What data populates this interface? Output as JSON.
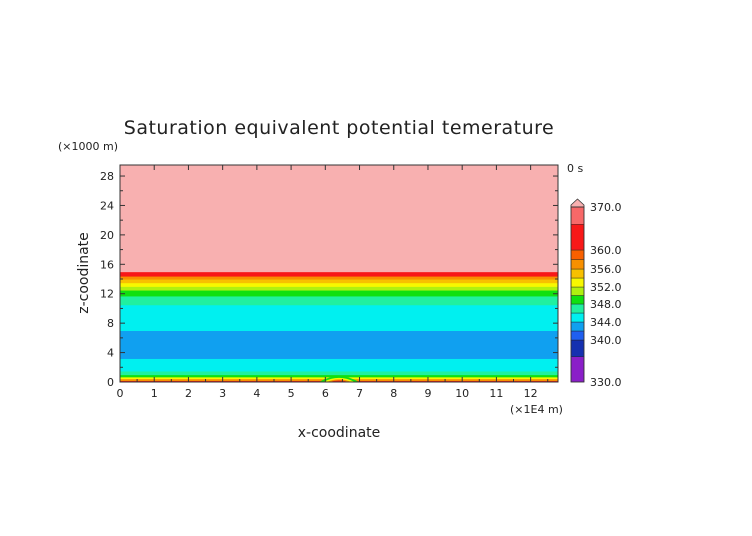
{
  "chart_data": {
    "type": "heatmap",
    "title": "Saturation equivalent potential temerature",
    "xlabel": "x-coodinate",
    "ylabel": "z-coodinate",
    "x_unit": "(×1E4 m)",
    "y_unit": "(×1000 m)",
    "time_label": "0 s",
    "xlim": [
      0,
      12.8
    ],
    "ylim": [
      0,
      29.5
    ],
    "x_ticks": [
      "0",
      "1",
      "2",
      "3",
      "4",
      "5",
      "6",
      "7",
      "8",
      "9",
      "10",
      "11",
      "12"
    ],
    "y_ticks": [
      "0",
      "4",
      "8",
      "12",
      "16",
      "20",
      "24",
      "28"
    ],
    "colorbar": {
      "range": [
        330,
        370
      ],
      "tick_labels": [
        "370.0",
        "360.0",
        "356.0",
        "352.0",
        "348.0",
        "344.0",
        "340.0",
        "330.0"
      ],
      "tick_values": [
        370,
        360,
        356,
        352,
        348,
        344,
        340,
        330
      ],
      "levels": [
        {
          "from": 330,
          "to": 336,
          "color": "#8a1fc8"
        },
        {
          "from": 336,
          "to": 340,
          "color": "#1530b0"
        },
        {
          "from": 340,
          "to": 342,
          "color": "#1f5ff0"
        },
        {
          "from": 342,
          "to": 344,
          "color": "#10a0f0"
        },
        {
          "from": 344,
          "to": 346,
          "color": "#00f0f0"
        },
        {
          "from": 346,
          "to": 348,
          "color": "#20f0a0"
        },
        {
          "from": 348,
          "to": 350,
          "color": "#10e010"
        },
        {
          "from": 350,
          "to": 352,
          "color": "#b0f010"
        },
        {
          "from": 352,
          "to": 354,
          "color": "#f8f800"
        },
        {
          "from": 354,
          "to": 356,
          "color": "#f8c000"
        },
        {
          "from": 356,
          "to": 358,
          "color": "#f89000"
        },
        {
          "from": 358,
          "to": 360,
          "color": "#f86000"
        },
        {
          "from": 360,
          "to": 366,
          "color": "#f81818"
        },
        {
          "from": 366,
          "to": 370,
          "color": "#f86868"
        },
        {
          "from": 370,
          "to": 380,
          "color": "#f8b0b0"
        }
      ]
    },
    "bands": [
      {
        "z0": 0,
        "z1": 0.2,
        "value": 361
      },
      {
        "z0": 0.2,
        "z1": 0.45,
        "value": 357
      },
      {
        "z0": 0.45,
        "z1": 0.7,
        "value": 353
      },
      {
        "z0": 0.7,
        "z1": 1.0,
        "value": 349
      },
      {
        "z0": 1.0,
        "z1": 1.5,
        "value": 347
      },
      {
        "z0": 1.5,
        "z1": 3.2,
        "value": 345
      },
      {
        "z0": 3.2,
        "z1": 7.0,
        "value": 343
      },
      {
        "z0": 7.0,
        "z1": 10.5,
        "value": 345
      },
      {
        "z0": 10.5,
        "z1": 11.7,
        "value": 347
      },
      {
        "z0": 11.7,
        "z1": 12.5,
        "value": 349
      },
      {
        "z0": 12.5,
        "z1": 13.0,
        "value": 351
      },
      {
        "z0": 13.0,
        "z1": 13.5,
        "value": 353
      },
      {
        "z0": 13.5,
        "z1": 14.0,
        "value": 355
      },
      {
        "z0": 14.0,
        "z1": 14.4,
        "value": 357
      },
      {
        "z0": 14.4,
        "z1": 15.0,
        "value": 361
      },
      {
        "z0": 15.0,
        "z1": 29.5,
        "value": 372
      }
    ],
    "bump": {
      "x": 6.4,
      "height": 1.0
    }
  }
}
